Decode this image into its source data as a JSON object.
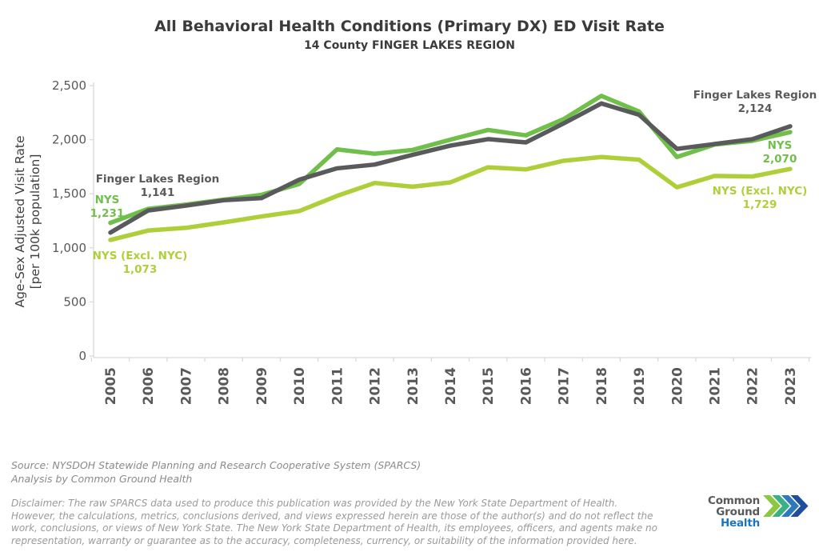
{
  "header": {
    "title": "All Behavioral Health Conditions (Primary DX) ED Visit Rate",
    "subtitle": "14 County FINGER LAKES REGION"
  },
  "chart_data": {
    "type": "line",
    "x": [
      "2005",
      "2006",
      "2007",
      "2008",
      "2009",
      "2010",
      "2011",
      "2012",
      "2013",
      "2014",
      "2015",
      "2016",
      "2017",
      "2018",
      "2019",
      "2020",
      "2021",
      "2022",
      "2023"
    ],
    "series": [
      {
        "name": "NYS (Excl. NYC)",
        "color": "#afcf3a",
        "values": [
          1073,
          1160,
          1185,
          1235,
          1290,
          1340,
          1480,
          1600,
          1565,
          1605,
          1745,
          1725,
          1805,
          1840,
          1815,
          1560,
          1665,
          1660,
          1729
        ]
      },
      {
        "name": "NYS",
        "color": "#70bf4b",
        "values": [
          1231,
          1360,
          1400,
          1445,
          1490,
          1590,
          1910,
          1870,
          1905,
          2000,
          2090,
          2040,
          2190,
          2405,
          2260,
          1840,
          1955,
          1990,
          2070
        ]
      },
      {
        "name": "Finger Lakes Region",
        "color": "#595a5c",
        "values": [
          1141,
          1345,
          1390,
          1440,
          1460,
          1630,
          1735,
          1770,
          1860,
          1945,
          2005,
          1975,
          2150,
          2335,
          2230,
          1915,
          1960,
          2005,
          2124
        ]
      }
    ],
    "title": "All Behavioral Health Conditions (Primary DX) ED Visit Rate",
    "subtitle": "14 County FINGER LAKES REGION",
    "xlabel": "",
    "ylabel": "Age-Sex Adjusted Visit Rate",
    "ylabel_line2": "[per 100k population]",
    "ylim": [
      0,
      2500
    ],
    "yticks": [
      "0",
      "500",
      "1,000",
      "1,500",
      "2,000",
      "2,500"
    ],
    "grid": "off",
    "legend_position": "inline-annotations",
    "annotations": [
      {
        "label": "Finger Lakes Region",
        "value": "1,141",
        "color": "#595a5c",
        "pos": "start"
      },
      {
        "label": "NYS",
        "value": "1,231",
        "color": "#70bf4b",
        "pos": "start"
      },
      {
        "label": "NYS (Excl. NYC)",
        "value": "1,073",
        "color": "#afcf3a",
        "pos": "start"
      },
      {
        "label": "Finger Lakes Region",
        "value": "2,124",
        "color": "#595a5c",
        "pos": "end"
      },
      {
        "label": "NYS",
        "value": "2,070",
        "color": "#70bf4b",
        "pos": "end"
      },
      {
        "label": "NYS (Excl. NYC)",
        "value": "1,729",
        "color": "#afcf3a",
        "pos": "end"
      }
    ]
  },
  "footer": {
    "source_line1": "Source: NYSDOH Statewide Planning and Research Cooperative System (SPARCS)",
    "source_line2": "Analysis by Common Ground Health",
    "disclaimer_lines": [
      "Disclaimer: The raw SPARCS data used to produce this publication was provided by the New York State Department of Health.",
      "However, the calculations, metrics, conclusions derived, and views expressed herein are those of the author(s) and do not reflect the",
      "work, conclusions, or views of New York State. The New York State Department of Health, its employees, officers, and agents make no",
      "representation, warranty or guarantee as to the accuracy, completeness, currency, or suitability of the information provided here."
    ]
  },
  "logo": {
    "line1": "Common Ground",
    "line2": "Health",
    "chevron_colors": [
      "#8dc63f",
      "#3baf85",
      "#2e79be",
      "#1f4e9c"
    ]
  },
  "colors": {
    "axis": "#d9d9d9",
    "tick_label": "#595959",
    "axis_title": "#3f3f3f"
  }
}
